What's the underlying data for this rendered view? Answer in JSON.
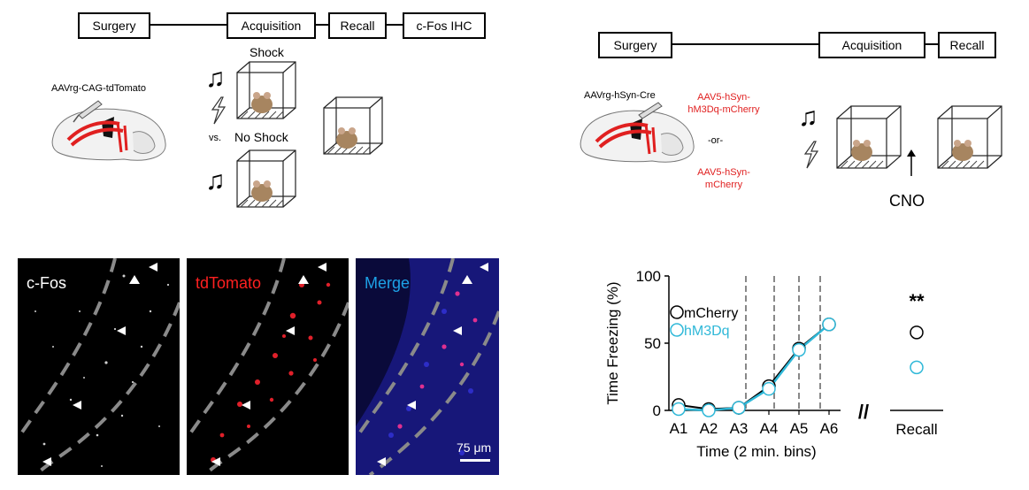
{
  "left_schematic": {
    "timeline": [
      "Surgery",
      "Acquisition",
      "Recall",
      "c-Fos IHC"
    ],
    "virus_label": "AAVrg-CAG-tdTomato",
    "shock_label": "Shock",
    "vs_label": "vs.",
    "no_shock_label": "No Shock"
  },
  "right_schematic": {
    "timeline": [
      "Surgery",
      "Acquisition",
      "Recall"
    ],
    "virus_label": "AAVrg-hSyn-Cre",
    "option1": [
      "AAV5-hSyn-",
      "hM3Dq-mCherry"
    ],
    "or_label": "-or-",
    "option2": [
      "AAV5-hSyn-",
      "mCherry"
    ],
    "cno_label": "CNO"
  },
  "micrographs": {
    "panels": [
      {
        "label": "c-Fos",
        "color": "#ffffff"
      },
      {
        "label": "tdTomato",
        "color": "#ff2020"
      },
      {
        "label": "Merge",
        "color": "#1da1e6"
      }
    ],
    "scale_bar": "75 μm"
  },
  "chart_data": {
    "type": "line",
    "title": "",
    "xlabel": "Time (2 min. bins)",
    "ylabel": "Time Freezing (%)",
    "ylim": [
      0,
      100
    ],
    "yticks": [
      "0",
      "50",
      "100"
    ],
    "categories": [
      "A1",
      "A2",
      "A3",
      "A4",
      "A5",
      "A6"
    ],
    "series": [
      {
        "name": "mCherry",
        "color": "#000000",
        "values": [
          4,
          1,
          2,
          18,
          46,
          64
        ]
      },
      {
        "name": "hM3Dq",
        "color": "#2fb8d8",
        "values": [
          1,
          0,
          2,
          16,
          45,
          64
        ]
      }
    ],
    "recall": {
      "label": "Recall",
      "mCherry": 58,
      "hM3Dq": 32,
      "significance": "**"
    },
    "axis_break": "//"
  }
}
